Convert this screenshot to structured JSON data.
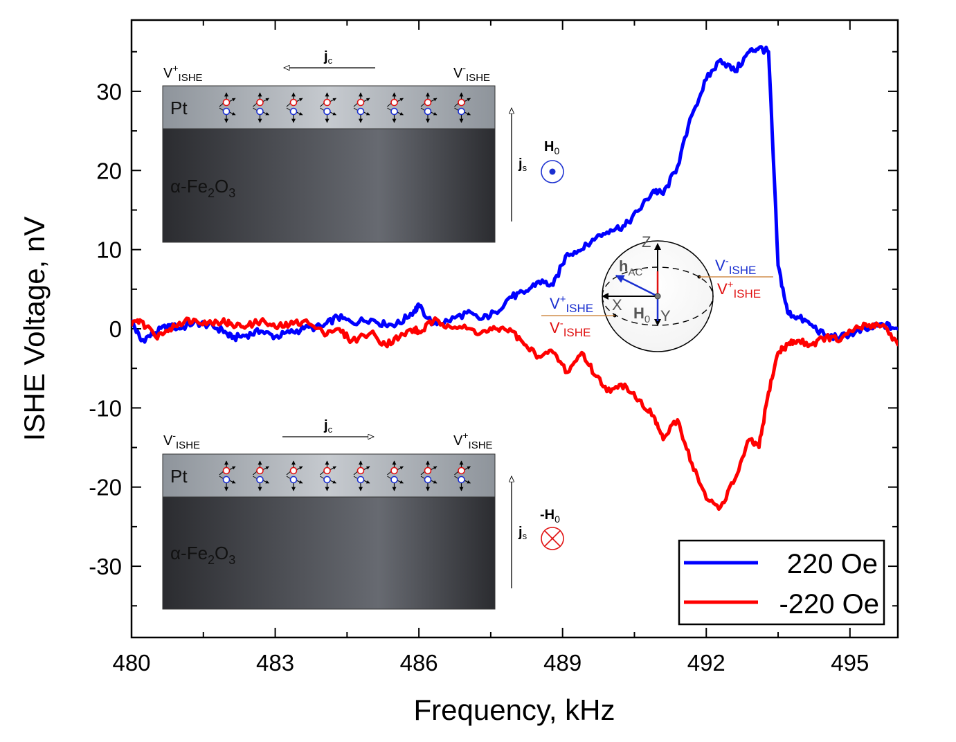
{
  "chart_data": {
    "type": "line",
    "title": "",
    "xlabel": "Frequency, kHz",
    "ylabel": "ISHE Voltage, nV",
    "xlim": [
      480,
      496
    ],
    "ylim": [
      -39,
      39
    ],
    "xticks": [
      480,
      483,
      486,
      489,
      492,
      495
    ],
    "yticks": [
      -30,
      -20,
      -10,
      0,
      10,
      20,
      30
    ],
    "grid": false,
    "legend_position": "bottom-right",
    "series": [
      {
        "name": "220 Oe",
        "color": "#0000ff",
        "x": [
          480.0,
          480.2,
          480.5,
          480.8,
          481.0,
          481.3,
          481.6,
          481.9,
          482.1,
          482.4,
          482.7,
          483.0,
          483.3,
          483.6,
          484.0,
          484.3,
          484.6,
          485.0,
          485.3,
          485.6,
          485.9,
          486.0,
          486.3,
          486.6,
          487.0,
          487.3,
          487.6,
          487.9,
          488.2,
          488.5,
          488.8,
          489.1,
          489.4,
          489.7,
          490.0,
          490.3,
          490.6,
          490.9,
          491.1,
          491.4,
          491.7,
          492.0,
          492.3,
          492.6,
          492.9,
          493.1,
          493.3,
          493.5,
          493.7,
          493.9,
          494.2,
          494.5,
          494.8,
          495.1,
          495.4,
          495.7,
          496.0
        ],
        "y": [
          1.0,
          -1.5,
          -0.5,
          0.5,
          0.0,
          0.8,
          0.5,
          -0.2,
          -1.2,
          -0.8,
          -0.3,
          -1.0,
          -0.5,
          0.0,
          0.3,
          1.5,
          0.8,
          1.2,
          0.5,
          0.7,
          2.3,
          2.8,
          0.6,
          1.0,
          2.0,
          1.2,
          2.1,
          4.0,
          4.5,
          6.0,
          5.5,
          9.5,
          10.0,
          11.5,
          12.5,
          13.0,
          15.0,
          17.5,
          17.0,
          20.5,
          27.0,
          31.5,
          34.0,
          32.5,
          35.0,
          35.5,
          35.0,
          8.0,
          2.0,
          1.5,
          0.5,
          -1.0,
          -1.0,
          -0.5,
          0.0,
          0.5,
          0.0
        ]
      },
      {
        "name": "-220 Oe",
        "color": "#ff0000",
        "x": [
          480.0,
          480.2,
          480.5,
          480.8,
          481.0,
          481.3,
          481.6,
          481.9,
          482.1,
          482.4,
          482.7,
          483.0,
          483.3,
          483.6,
          484.0,
          484.3,
          484.6,
          485.0,
          485.3,
          485.6,
          485.9,
          486.0,
          486.3,
          486.6,
          487.0,
          487.3,
          487.6,
          487.9,
          488.2,
          488.5,
          488.8,
          489.1,
          489.4,
          489.7,
          490.0,
          490.3,
          490.6,
          490.9,
          491.1,
          491.4,
          491.7,
          492.0,
          492.3,
          492.6,
          492.9,
          493.1,
          493.3,
          493.5,
          493.7,
          493.9,
          494.2,
          494.5,
          494.8,
          495.1,
          495.4,
          495.7,
          496.0
        ],
        "y": [
          0.5,
          1.0,
          -1.0,
          0.0,
          0.8,
          1.2,
          0.8,
          1.0,
          0.5,
          0.3,
          1.0,
          0.2,
          0.5,
          1.0,
          -0.5,
          0.0,
          -1.5,
          -0.5,
          -2.0,
          -1.0,
          0.0,
          -0.5,
          1.0,
          0.5,
          0.0,
          -0.5,
          0.0,
          0.0,
          -2.0,
          -3.5,
          -3.0,
          -5.5,
          -3.0,
          -6.0,
          -8.0,
          -7.0,
          -9.0,
          -11.0,
          -14.0,
          -11.5,
          -17.0,
          -21.5,
          -22.5,
          -19.0,
          -14.0,
          -15.0,
          -8.0,
          -3.0,
          -2.0,
          -1.5,
          -2.0,
          -1.0,
          -1.5,
          0.0,
          0.5,
          0.5,
          -2.0
        ]
      }
    ],
    "legend": [
      "220 Oe",
      "-220 Oe"
    ]
  },
  "insets": {
    "top": {
      "v_left_base": "V",
      "v_left_sup": "+",
      "v_left_sub": "ISHE",
      "v_right_base": "V",
      "v_right_sup": "-",
      "v_right_sub": "ISHE",
      "jc_base": "j",
      "jc_sub": "c",
      "js_base": "j",
      "js_sub": "s",
      "h_base": "H",
      "h_sub": "0",
      "pt": "Pt",
      "fe_pre": "α-Fe",
      "fe_sub1": "2",
      "fe_mid": "O",
      "fe_sub2": "3"
    },
    "bottom": {
      "v_left_base": "V",
      "v_left_sup": "-",
      "v_left_sub": "ISHE",
      "v_right_base": "V",
      "v_right_sup": "+",
      "v_right_sub": "ISHE",
      "jc_base": "j",
      "jc_sub": "c",
      "js_base": "j",
      "js_sub": "s",
      "h_base": "-H",
      "h_sub": "0",
      "pt": "Pt",
      "fe_pre": "α-Fe",
      "fe_sub1": "2",
      "fe_mid": "O",
      "fe_sub2": "3"
    },
    "sphere": {
      "z": "Z",
      "x": "X",
      "y": "Y",
      "hac_base": "h",
      "hac_sub": "AC",
      "h0_base": "H",
      "h0_sub": "0",
      "vr_top_base": "V",
      "vr_top_sup": "-",
      "vr_top_sub": "ISHE",
      "vr_bot_base": "V",
      "vr_bot_sup": "+",
      "vr_bot_sub": "ISHE",
      "vl_top_base": "V",
      "vl_top_sup": "+",
      "vl_top_sub": "ISHE",
      "vl_bot_base": "V",
      "vl_bot_sup": "-",
      "vl_bot_sub": "ISHE"
    }
  }
}
